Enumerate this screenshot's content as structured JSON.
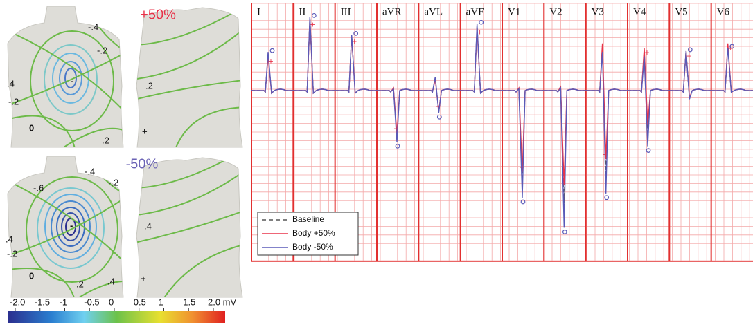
{
  "maps": [
    {
      "label": "+50%",
      "color": "#e8334a",
      "contour_labels": [
        "-.4",
        "-.2",
        ".4",
        "-.2",
        "0",
        ".2",
        "-",
        ".2",
        "+"
      ]
    },
    {
      "label": "-50%",
      "color": "#6b63b5",
      "contour_labels": [
        "-.4",
        "-.2",
        "-.6",
        "-",
        ".4",
        "-.2",
        "0",
        ".2",
        ".4",
        ".4",
        "+"
      ]
    }
  ],
  "colorbar": {
    "ticks": [
      {
        "value": -2,
        "label": "-2.0"
      },
      -1.5,
      -1,
      -0.5,
      0,
      0.5,
      1,
      1.5,
      {
        "value": 2,
        "label": "2.0 mV"
      }
    ]
  },
  "ecg": {
    "leads": [
      "I",
      "II",
      "III",
      "aVR",
      "aVL",
      "aVF",
      "V1",
      "V2",
      "V3",
      "V4",
      "V5",
      "V6"
    ],
    "series": [
      {
        "name": "Baseline",
        "color": "#555555",
        "dash": true,
        "r": [
          4.2,
          8.4,
          6.4,
          0.25,
          1.45,
          7.6,
          0.25,
          0.4,
          5.0,
          4.5,
          4.6,
          5.2
        ],
        "s": [
          -0.3,
          -0.3,
          -0.3,
          -5.5,
          -2.5,
          -0.3,
          -11,
          -13.5,
          -10,
          -5.2,
          -0.9,
          -0.2
        ]
      },
      {
        "name": "Body +50%",
        "color": "#e8334a",
        "dash": false,
        "r": [
          4.0,
          8.3,
          6.3,
          0.3,
          1.3,
          7.4,
          0.3,
          0.5,
          5.5,
          5.0,
          4.6,
          5.5
        ],
        "s": [
          -0.3,
          -0.3,
          -0.3,
          -5.0,
          -2.4,
          -0.3,
          -9.5,
          -11,
          -8.0,
          -4.0,
          -0.8,
          -0.2
        ]
      },
      {
        "name": "Body -50%",
        "color": "#5a5ab8",
        "dash": false,
        "r": [
          4.5,
          8.6,
          6.5,
          0.2,
          1.6,
          7.8,
          0.2,
          0.3,
          4.5,
          4.0,
          4.6,
          5.0
        ],
        "s": [
          -0.3,
          -0.3,
          -0.3,
          -6.0,
          -2.6,
          -0.3,
          -12.5,
          -16,
          -12,
          -6.5,
          -1.0,
          -0.2
        ]
      }
    ]
  }
}
